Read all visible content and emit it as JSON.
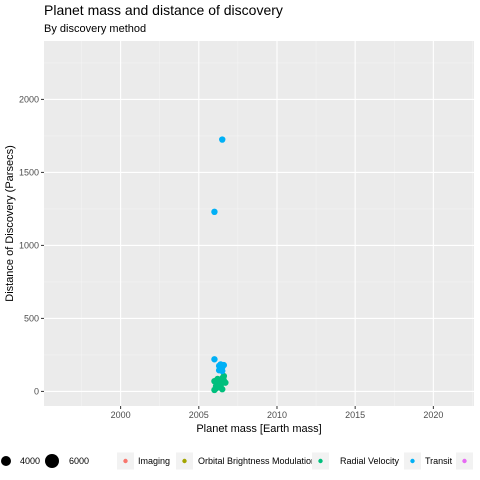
{
  "chart_data": {
    "type": "scatter",
    "title": "Planet mass and distance of discovery",
    "subtitle": "By discovery method",
    "xlabel": "Planet mass [Earth mass]",
    "ylabel": "Distance of Discovery (Parsecs)",
    "xlim": [
      1995.1,
      2022.6
    ],
    "ylim": [
      -100,
      2400
    ],
    "x_ticks": [
      "2000",
      "2005",
      "2010",
      "2015",
      "2020"
    ],
    "y_ticks": [
      "0",
      "500",
      "1000",
      "1500",
      "2000"
    ],
    "grid": true,
    "legend_position": "bottom",
    "size_legend": [
      "4000",
      "6000"
    ],
    "colors": {
      "Imaging": "#f8766d",
      "Orbital Brightness Modulation": "#a3a500",
      "Radial Velocity": "#00bf7d",
      "Transit": "#00b0f6",
      "other": "#e76bf3"
    },
    "series": [
      {
        "name": "Imaging",
        "points": []
      },
      {
        "name": "Orbital Brightness Modulation",
        "points": []
      },
      {
        "name": "Radial Velocity",
        "points": [
          [
            2006.0,
            70
          ],
          [
            2006.2,
            55
          ],
          [
            2006.4,
            40
          ],
          [
            2006.6,
            75
          ],
          [
            2006.1,
            20
          ],
          [
            2006.3,
            30
          ],
          [
            2006.5,
            15
          ],
          [
            2006.7,
            60
          ],
          [
            2006.2,
            85
          ],
          [
            2006.4,
            65
          ],
          [
            2006.0,
            10
          ],
          [
            2006.6,
            105
          ],
          [
            2006.3,
            45
          ],
          [
            2006.5,
            90
          ],
          [
            2006.1,
            35
          ]
        ]
      },
      {
        "name": "Transit",
        "points": [
          [
            2006.5,
            1725
          ],
          [
            2006.0,
            1230
          ],
          [
            2006.0,
            220
          ],
          [
            2006.3,
            175
          ],
          [
            2006.5,
            165
          ],
          [
            2006.4,
            155
          ],
          [
            2006.3,
            145
          ],
          [
            2006.5,
            140
          ],
          [
            2006.4,
            185
          ],
          [
            2006.6,
            180
          ]
        ]
      },
      {
        "name": "",
        "points": []
      }
    ]
  }
}
